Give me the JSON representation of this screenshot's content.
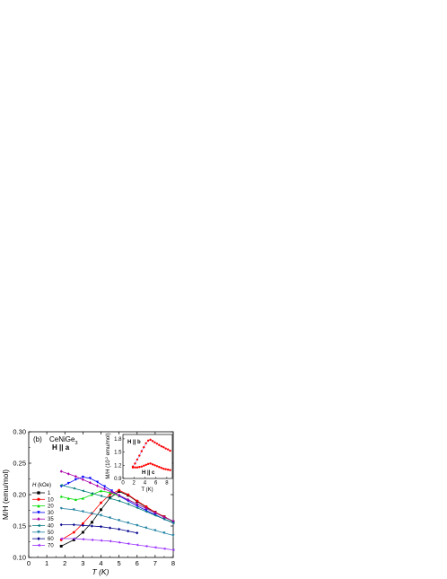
{
  "chart_data": {
    "type": "scatter",
    "xlabel": "T (K)",
    "ylabel": "M/H (emu/mol)",
    "xlim": [
      0,
      8
    ],
    "ylim": [
      0.1,
      0.3
    ],
    "xticks": [
      "0",
      "1",
      "2",
      "3",
      "4",
      "5",
      "6",
      "7",
      "8"
    ],
    "yticks": [
      "0.10",
      "0.15",
      "0.20",
      "0.25",
      "0.30"
    ],
    "annotations": {
      "panel": "(b)",
      "compound": "CeNiGe",
      "compound_sub": "3",
      "direction": "H || a"
    },
    "legend": {
      "title": "H (kOe)",
      "position": "left"
    },
    "series": [
      {
        "name": "1",
        "color": "#000000",
        "marker": "square",
        "x": [
          1.8,
          2.5,
          3.0,
          3.5,
          4.0,
          4.5,
          5.0,
          5.5,
          6.0,
          6.5,
          7.0,
          7.5,
          8.0
        ],
        "y": [
          0.118,
          0.128,
          0.14,
          0.156,
          0.176,
          0.195,
          0.205,
          0.199,
          0.189,
          0.18,
          0.172,
          0.165,
          0.157
        ]
      },
      {
        "name": "10",
        "color": "#ff0000",
        "marker": "circle",
        "x": [
          1.8,
          2.5,
          3.0,
          3.5,
          4.0,
          4.5,
          5.0,
          5.5,
          6.0,
          6.5,
          7.0,
          7.5,
          8.0
        ],
        "y": [
          0.128,
          0.14,
          0.154,
          0.17,
          0.187,
          0.2,
          0.207,
          0.2,
          0.19,
          0.181,
          0.172,
          0.165,
          0.157
        ]
      },
      {
        "name": "20",
        "color": "#00dd00",
        "marker": "triangle-up",
        "x": [
          1.8,
          2.2,
          2.6,
          3.0,
          3.5,
          4.0,
          4.5,
          5.0,
          5.5,
          6.0,
          6.5,
          7.0,
          7.5,
          8.0
        ],
        "y": [
          0.197,
          0.194,
          0.192,
          0.194,
          0.2,
          0.206,
          0.203,
          0.198,
          0.192,
          0.185,
          0.178,
          0.171,
          0.164,
          0.157
        ]
      },
      {
        "name": "30",
        "color": "#0000ff",
        "marker": "triangle-down",
        "x": [
          1.8,
          2.2,
          2.6,
          3.0,
          3.4,
          3.8,
          4.2,
          4.6,
          5.0,
          5.5,
          6.0,
          6.5,
          7.0,
          7.5,
          8.0
        ],
        "y": [
          0.213,
          0.218,
          0.224,
          0.228,
          0.226,
          0.22,
          0.213,
          0.206,
          0.198,
          0.19,
          0.182,
          0.175,
          0.168,
          0.161,
          0.155
        ]
      },
      {
        "name": "35",
        "color": "#aa00aa",
        "marker": "diamond",
        "x": [
          1.8,
          2.2,
          2.6,
          3.0,
          3.4,
          3.8,
          4.2,
          4.6,
          5.0,
          5.5,
          6.0,
          6.5,
          7.0,
          7.5,
          8.0
        ],
        "y": [
          0.237,
          0.233,
          0.229,
          0.224,
          0.219,
          0.214,
          0.209,
          0.204,
          0.199,
          0.192,
          0.185,
          0.178,
          0.171,
          0.164,
          0.158
        ]
      },
      {
        "name": "40",
        "color": "#007a7a",
        "marker": "triangle-left",
        "x": [
          1.8,
          2.5,
          3.0,
          3.5,
          4.0,
          4.5,
          5.0,
          5.5,
          6.0,
          6.5,
          7.0,
          7.5,
          8.0
        ],
        "y": [
          0.215,
          0.21,
          0.206,
          0.202,
          0.198,
          0.194,
          0.19,
          0.185,
          0.179,
          0.173,
          0.167,
          0.161,
          0.155
        ]
      },
      {
        "name": "50",
        "color": "#1a7f9f",
        "marker": "triangle-down",
        "x": [
          1.8,
          2.5,
          3.0,
          3.5,
          4.0,
          4.5,
          5.0,
          5.5,
          6.0,
          6.5,
          7.0,
          7.5,
          8.0
        ],
        "y": [
          0.178,
          0.176,
          0.173,
          0.17,
          0.167,
          0.163,
          0.159,
          0.155,
          0.151,
          0.147,
          0.143,
          0.139,
          0.135
        ]
      },
      {
        "name": "60",
        "color": "#00008b",
        "marker": "diamond",
        "x": [
          1.8,
          2.5,
          3.0,
          3.5,
          4.0,
          4.5,
          5.0,
          5.5,
          6.0
        ],
        "y": [
          0.152,
          0.152,
          0.151,
          0.15,
          0.149,
          0.147,
          0.145,
          0.142,
          0.139
        ]
      },
      {
        "name": "70",
        "color": "#9b30ff",
        "marker": "triangle-left",
        "x": [
          1.8,
          2.5,
          3.0,
          3.5,
          4.0,
          4.5,
          5.0,
          5.5,
          6.0,
          6.5,
          7.0,
          7.5,
          8.0
        ],
        "y": [
          0.13,
          0.13,
          0.129,
          0.128,
          0.127,
          0.126,
          0.124,
          0.122,
          0.12,
          0.118,
          0.116,
          0.114,
          0.112
        ]
      }
    ],
    "inset": {
      "type": "scatter",
      "xlabel": "T (K)",
      "ylabel_main": "M/H (10",
      "ylabel_sup": "-2",
      "ylabel_end": " emu/mol)",
      "xlim": [
        0,
        9
      ],
      "ylim": [
        0.9,
        1.9
      ],
      "xticks": [
        "0",
        "2",
        "4",
        "6",
        "8"
      ],
      "yticks": [
        "0.9",
        "1.2",
        "1.5",
        "1.8"
      ],
      "series": [
        {
          "name": "H || b",
          "color": "#ff0000",
          "x": [
            1.8,
            2.2,
            2.6,
            3.0,
            3.4,
            3.8,
            4.2,
            4.6,
            5.0,
            5.4,
            5.8,
            6.2,
            6.6,
            7.0,
            7.4,
            7.8,
            8.2,
            8.6
          ],
          "y": [
            1.17,
            1.24,
            1.33,
            1.42,
            1.52,
            1.61,
            1.7,
            1.76,
            1.78,
            1.75,
            1.72,
            1.69,
            1.66,
            1.63,
            1.61,
            1.58,
            1.56,
            1.53
          ]
        },
        {
          "name": "H || c",
          "color": "#ff0000",
          "x": [
            1.8,
            2.2,
            2.6,
            3.0,
            3.4,
            3.8,
            4.2,
            4.6,
            5.0,
            5.4,
            5.8,
            6.2,
            6.6,
            7.0,
            7.4,
            7.8,
            8.2,
            8.6
          ],
          "y": [
            1.15,
            1.15,
            1.15,
            1.16,
            1.17,
            1.19,
            1.21,
            1.23,
            1.24,
            1.22,
            1.2,
            1.18,
            1.16,
            1.14,
            1.12,
            1.11,
            1.1,
            1.09
          ]
        }
      ]
    }
  }
}
